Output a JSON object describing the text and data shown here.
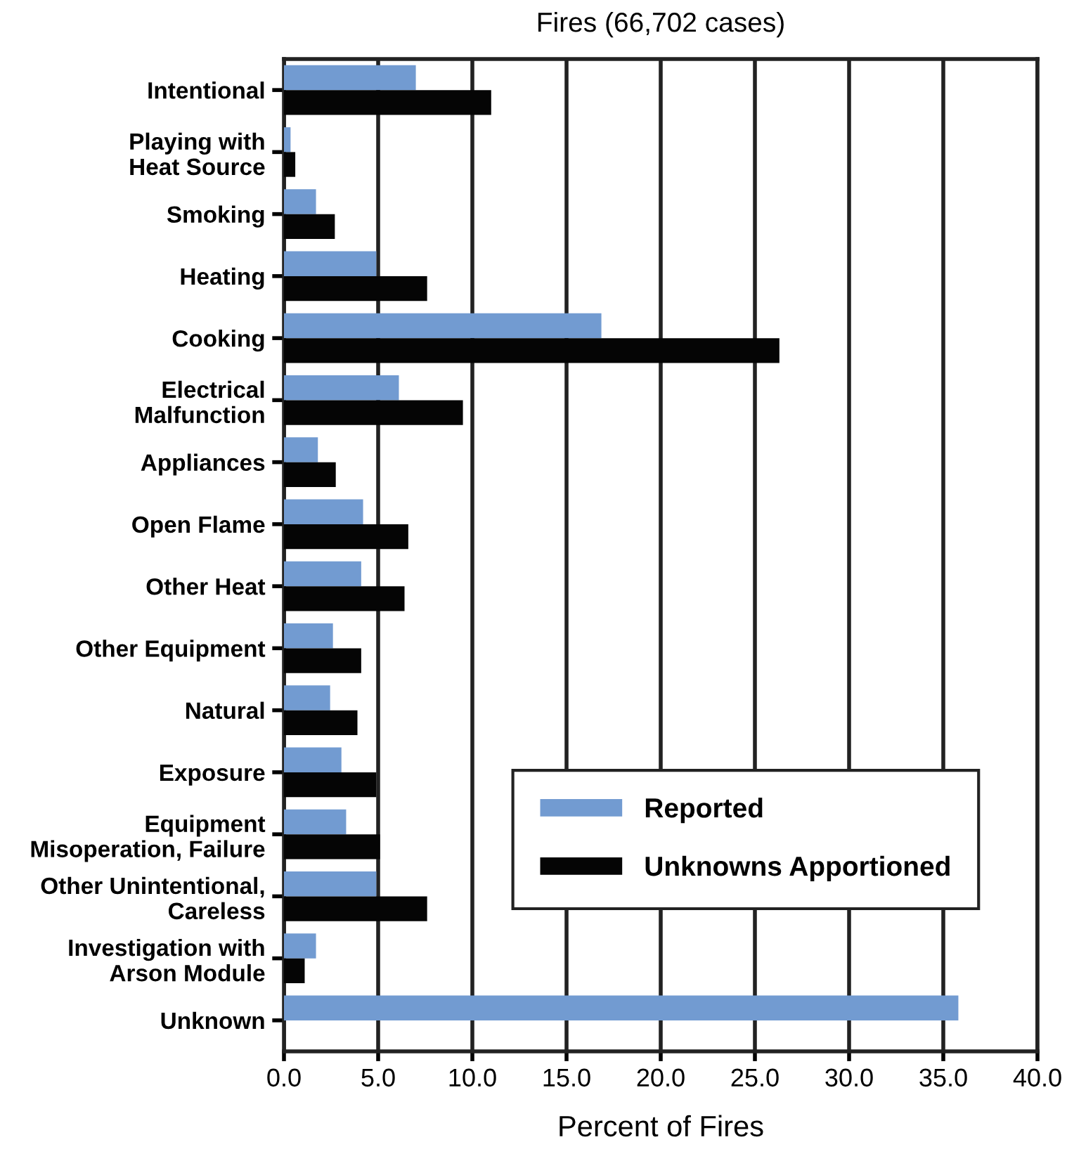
{
  "chart_data": {
    "type": "bar",
    "orientation": "horizontal",
    "title": "Fires (66,702 cases)",
    "xlabel": "Percent of Fires",
    "categories": [
      "Intentional",
      "Playing with\nHeat Source",
      "Smoking",
      "Heating",
      "Cooking",
      "Electrical\nMalfunction",
      "Appliances",
      "Open Flame",
      "Other Heat",
      "Other Equipment",
      "Natural",
      "Exposure",
      "Equipment\nMisoperation, Failure",
      "Other Unintentional,\nCareless",
      "Investigation with\nArson Module",
      "Unknown"
    ],
    "series": [
      {
        "name": "Reported",
        "color": "#729bd1",
        "values": [
          7.0,
          0.35,
          1.7,
          4.9,
          16.85,
          6.1,
          1.8,
          4.2,
          4.1,
          2.6,
          2.45,
          3.05,
          3.3,
          4.9,
          1.7,
          35.8
        ]
      },
      {
        "name": "Unknowns Apportioned",
        "color": "#050505",
        "values": [
          11.0,
          0.6,
          2.7,
          7.6,
          26.3,
          9.5,
          2.75,
          6.6,
          6.4,
          4.1,
          3.9,
          4.9,
          5.1,
          7.6,
          1.1,
          null
        ]
      }
    ],
    "xlim": [
      0,
      40
    ],
    "xticks": [
      {
        "value": 0,
        "label": "0.0"
      },
      {
        "value": 5,
        "label": "5.0"
      },
      {
        "value": 10,
        "label": "10.0"
      },
      {
        "value": 15,
        "label": "15.0"
      },
      {
        "value": 20,
        "label": "20.0"
      },
      {
        "value": 25,
        "label": "25.0"
      },
      {
        "value": 30,
        "label": "30.0"
      },
      {
        "value": 35,
        "label": "35.0"
      },
      {
        "value": 40,
        "label": "40.0"
      }
    ],
    "grid": "x",
    "legend": "bottom right"
  }
}
